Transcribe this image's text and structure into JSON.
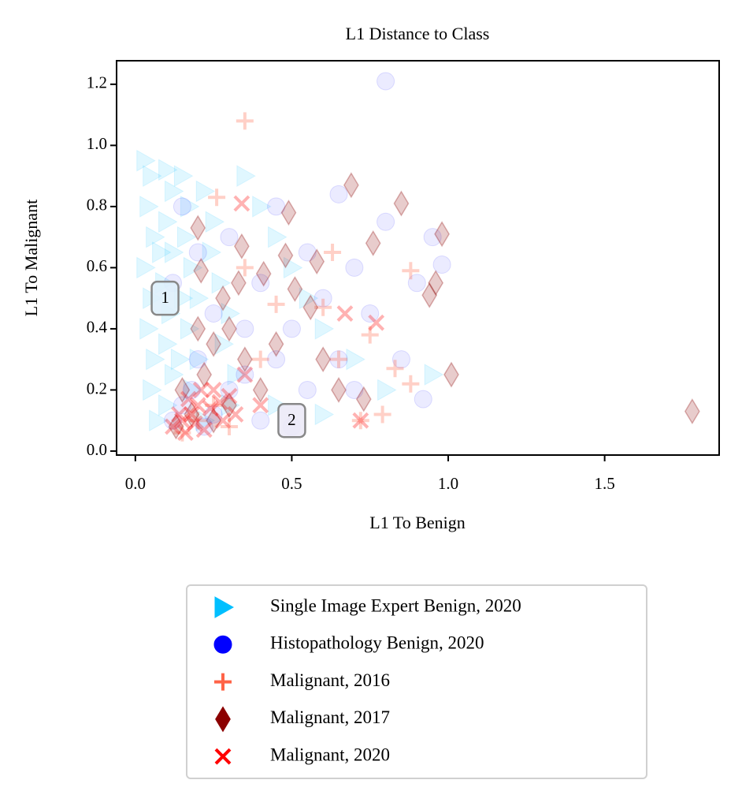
{
  "chart_data": {
    "type": "scatter",
    "title": "L1 Distance to Class",
    "x_label": "L1 To Benign",
    "y_label": "L1 To Malignant",
    "xlim": [
      -0.06,
      1.866
    ],
    "ylim": [
      -0.013,
      1.277
    ],
    "xticks": [
      {
        "value": 0,
        "label": "0.0"
      },
      0.5,
      {
        "value": 1,
        "label": "1.0"
      },
      1.5
    ],
    "yticks": [
      {
        "value": 0,
        "label": "0.0"
      },
      0.2,
      0.4,
      0.6,
      0.8,
      {
        "value": 1,
        "label": "1.0"
      },
      1.2
    ],
    "annotations": [
      {
        "text": "1",
        "x": 0.095,
        "y": 0.5
      },
      {
        "text": "2",
        "x": 0.5,
        "y": 0.1
      }
    ],
    "series": [
      {
        "name": "Single Image Expert Benign, 2020",
        "color": "#00bfff",
        "marker": "triangle-right",
        "alpha": 0.12,
        "x": [
          0.03,
          0.05,
          0.04,
          0.06,
          0.03,
          0.05,
          0.04,
          0.06,
          0.05,
          0.07,
          0.1,
          0.12,
          0.1,
          0.12,
          0.09,
          0.11,
          0.1,
          0.12,
          0.1,
          0.15,
          0.17,
          0.16,
          0.18,
          0.15,
          0.17,
          0.2,
          0.18,
          0.22,
          0.25,
          0.24,
          0.27,
          0.3,
          0.28,
          0.32,
          0.35,
          0.4,
          0.45,
          0.5,
          0.55,
          0.6,
          0.7,
          0.8,
          0.95,
          0.3,
          0.45,
          0.6,
          0.2,
          0.08,
          0.14,
          0.22
        ],
        "values": [
          0.95,
          0.9,
          0.8,
          0.7,
          0.6,
          0.5,
          0.4,
          0.3,
          0.2,
          0.1,
          0.92,
          0.85,
          0.75,
          0.65,
          0.55,
          0.45,
          0.35,
          0.25,
          0.15,
          0.9,
          0.8,
          0.7,
          0.6,
          0.5,
          0.4,
          0.3,
          0.2,
          0.85,
          0.75,
          0.65,
          0.55,
          0.45,
          0.35,
          0.25,
          0.9,
          0.8,
          0.7,
          0.6,
          0.5,
          0.4,
          0.3,
          0.2,
          0.25,
          0.15,
          0.15,
          0.12,
          0.5,
          0.65,
          0.3,
          0.1
        ]
      },
      {
        "name": "Histopathology Benign, 2020",
        "color": "#0000ff",
        "marker": "circle",
        "alpha": 0.08,
        "x": [
          0.12,
          0.15,
          0.18,
          0.2,
          0.22,
          0.25,
          0.3,
          0.35,
          0.4,
          0.45,
          0.5,
          0.55,
          0.6,
          0.65,
          0.7,
          0.75,
          0.8,
          0.8,
          0.85,
          0.9,
          0.95,
          0.98,
          0.92,
          0.65,
          0.45,
          0.3,
          0.2,
          0.15,
          0.12,
          0.25,
          0.4,
          0.55,
          0.7,
          0.35,
          0.5
        ],
        "values": [
          0.1,
          0.15,
          0.2,
          0.3,
          0.08,
          0.12,
          0.2,
          0.25,
          0.1,
          0.3,
          0.4,
          0.2,
          0.5,
          0.3,
          0.6,
          0.45,
          0.75,
          1.21,
          0.3,
          0.55,
          0.7,
          0.61,
          0.17,
          0.84,
          0.8,
          0.7,
          0.65,
          0.8,
          0.55,
          0.45,
          0.55,
          0.65,
          0.2,
          0.4,
          0.08
        ]
      },
      {
        "name": "Malignant, 2016",
        "color": "#ff6347",
        "marker": "plus",
        "alpha": 0.3,
        "x": [
          0.35,
          0.26,
          0.63,
          0.88,
          0.83,
          0.88,
          0.79,
          0.72,
          0.75,
          0.6,
          0.45,
          0.2,
          0.25,
          0.3,
          0.65,
          0.4,
          0.15,
          0.35
        ],
        "values": [
          1.08,
          0.83,
          0.65,
          0.59,
          0.27,
          0.22,
          0.12,
          0.1,
          0.38,
          0.47,
          0.48,
          0.1,
          0.15,
          0.08,
          0.3,
          0.3,
          0.06,
          0.6
        ]
      },
      {
        "name": "Malignant, 2017",
        "color": "#8b0000",
        "marker": "diamond",
        "alpha": 0.2,
        "x": [
          0.2,
          0.21,
          0.34,
          0.49,
          0.48,
          0.58,
          0.69,
          0.76,
          0.85,
          0.98,
          0.96,
          0.94,
          1.01,
          1.78,
          0.73,
          0.41,
          0.51,
          0.56,
          0.33,
          0.28,
          0.3,
          0.25,
          0.2,
          0.15,
          0.18,
          0.22,
          0.3,
          0.4,
          0.45,
          0.6,
          0.65,
          0.13,
          0.25,
          0.35
        ],
        "values": [
          0.73,
          0.59,
          0.67,
          0.78,
          0.64,
          0.62,
          0.87,
          0.68,
          0.81,
          0.71,
          0.55,
          0.51,
          0.25,
          0.13,
          0.17,
          0.58,
          0.53,
          0.47,
          0.55,
          0.5,
          0.4,
          0.35,
          0.4,
          0.2,
          0.12,
          0.25,
          0.15,
          0.2,
          0.35,
          0.3,
          0.2,
          0.08,
          0.1,
          0.3
        ]
      },
      {
        "name": "Malignant, 2020",
        "color": "#ff0000",
        "marker": "x",
        "alpha": 0.3,
        "x": [
          0.34,
          0.77,
          0.67,
          0.72,
          0.12,
          0.15,
          0.18,
          0.2,
          0.22,
          0.25,
          0.28,
          0.3,
          0.16,
          0.24,
          0.14,
          0.19,
          0.27,
          0.32,
          0.21,
          0.17,
          0.35,
          0.4
        ],
        "values": [
          0.81,
          0.42,
          0.45,
          0.1,
          0.08,
          0.1,
          0.12,
          0.15,
          0.07,
          0.2,
          0.1,
          0.18,
          0.06,
          0.14,
          0.12,
          0.09,
          0.16,
          0.12,
          0.2,
          0.17,
          0.25,
          0.15
        ]
      }
    ]
  }
}
